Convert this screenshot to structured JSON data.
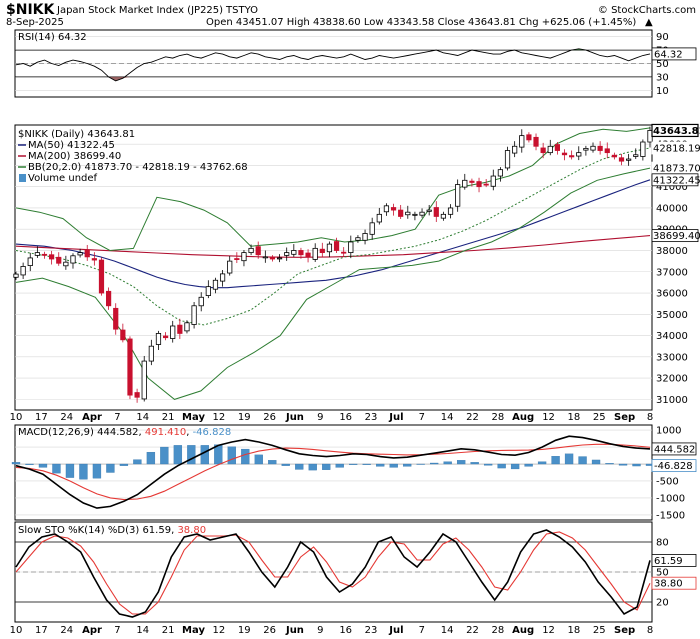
{
  "header": {
    "symbol": "$NIKK",
    "name": "Japan Stock Market Index (JP225)",
    "exchange": "TSTYO",
    "date": "8-Sep-2025",
    "quote": "Open 43451.07  High 43838.60  Low 43343.58  Close 43643.81  Chg +625.06 (+1.45%)",
    "quote_arrow": "▲",
    "watermark": "© StockCharts.com"
  },
  "legends": {
    "rsi": "RSI(14) 64.32",
    "price": "$NIKK (Daily) 43643.81",
    "ma50": "MA(50) 41322.45",
    "ma200": "MA(200) 38699.40",
    "bb": "BB(20,2.0) 41873.70 - 42818.19 - 43762.68",
    "volume": "Volume undef",
    "macd_prefix": "MACD(12,26,9)",
    "macd_v1": "444.582",
    "macd_v2": "491.410",
    "macd_v3": "-46.828",
    "sto_prefix": "Slow STO %K(14) %D(3)",
    "sto_v1": "61.59",
    "sto_v2": "38.80"
  },
  "colors": {
    "up_candle": "#000000",
    "down_candle": "#c8102e",
    "ma50": "#1a237e",
    "ma200": "#b01030",
    "bollinger": "#2e7d32",
    "macd_line": "#000000",
    "signal_line": "#e53935",
    "histogram": "#4a90c8",
    "rsi_fill_over": "#2e7d32",
    "rsi_fill_under": "#8a4a4a"
  },
  "xaxis": {
    "labels": [
      {
        "text": "10",
        "bold": false
      },
      {
        "text": "17",
        "bold": false
      },
      {
        "text": "24",
        "bold": false
      },
      {
        "text": "Apr",
        "bold": true
      },
      {
        "text": "7",
        "bold": false
      },
      {
        "text": "14",
        "bold": false
      },
      {
        "text": "21",
        "bold": false
      },
      {
        "text": "May",
        "bold": true
      },
      {
        "text": "12",
        "bold": false
      },
      {
        "text": "19",
        "bold": false
      },
      {
        "text": "26",
        "bold": false
      },
      {
        "text": "Jun",
        "bold": true
      },
      {
        "text": "9",
        "bold": false
      },
      {
        "text": "16",
        "bold": false
      },
      {
        "text": "23",
        "bold": false
      },
      {
        "text": "Jul",
        "bold": true
      },
      {
        "text": "7",
        "bold": false
      },
      {
        "text": "14",
        "bold": false
      },
      {
        "text": "22",
        "bold": false
      },
      {
        "text": "28",
        "bold": false
      },
      {
        "text": "Aug",
        "bold": true
      },
      {
        "text": "12",
        "bold": false
      },
      {
        "text": "18",
        "bold": false
      },
      {
        "text": "25",
        "bold": false
      },
      {
        "text": "Sep",
        "bold": true
      },
      {
        "text": "8",
        "bold": false
      }
    ]
  },
  "chart_data": [
    {
      "type": "line",
      "panel": "rsi",
      "title": "RSI(14) 64.32",
      "ylim": [
        0,
        100
      ],
      "y_ticks": [
        10,
        30,
        50,
        70,
        90
      ],
      "y_tick_labels": [
        "10",
        "30",
        "50",
        "70",
        "90"
      ],
      "latest_labels": [
        "64.32"
      ],
      "reference_lines": [
        30,
        70
      ],
      "series": [
        {
          "name": "RSI(14)",
          "values": [
            48,
            50,
            46,
            52,
            55,
            50,
            47,
            52,
            55,
            53,
            50,
            46,
            40,
            30,
            24,
            28,
            36,
            44,
            50,
            52,
            56,
            60,
            58,
            62,
            64,
            60,
            58,
            62,
            66,
            64,
            60,
            58,
            62,
            66,
            64,
            60,
            58,
            56,
            60,
            62,
            58,
            56,
            60,
            62,
            60,
            58,
            60,
            64,
            60,
            56,
            58,
            62,
            60,
            58,
            60,
            62,
            64,
            66,
            68,
            70,
            66,
            64,
            62,
            66,
            70,
            68,
            66,
            64,
            64,
            68,
            70,
            66,
            64,
            62,
            60,
            58,
            62,
            66,
            70,
            72,
            70,
            66,
            62,
            60,
            62,
            58,
            54,
            58,
            62,
            64.32
          ]
        }
      ]
    },
    {
      "type": "candlestick",
      "panel": "price",
      "title": "$NIKK (Daily) 43643.81",
      "ylim": [
        30500,
        43900
      ],
      "y_ticks": [
        31000,
        32000,
        33000,
        34000,
        35000,
        36000,
        37000,
        38000,
        39000,
        40000,
        41000,
        42000,
        43000
      ],
      "y_tick_labels": [
        "31000",
        "32000",
        "33000",
        "34000",
        "35000",
        "36000",
        "37000",
        "38000",
        "39000",
        "40000",
        "41000",
        "42000",
        "43000"
      ],
      "latest_labels": [
        {
          "text": "43643.81",
          "value": 43643.81,
          "style": "boxed-bold"
        },
        {
          "text": "42818.19",
          "value": 42818.19,
          "style": "plain"
        },
        {
          "text": "41873.70",
          "value": 41873.7,
          "style": "plain"
        },
        {
          "text": "41322.45",
          "value": 41322.45,
          "style": "boxed"
        },
        {
          "text": "38699.40",
          "value": 38699.4,
          "style": "boxed"
        }
      ],
      "close": [
        36890,
        37250,
        37650,
        37900,
        37800,
        37600,
        37400,
        37450,
        37750,
        37900,
        37700,
        37550,
        36000,
        35400,
        34300,
        33800,
        31200,
        31100,
        32800,
        33500,
        34100,
        33900,
        34450,
        34100,
        34600,
        35400,
        35800,
        36300,
        36600,
        36900,
        37500,
        37600,
        37900,
        38100,
        37800,
        37700,
        37600,
        37650,
        37900,
        38000,
        37800,
        37700,
        38100,
        37900,
        38300,
        38000,
        37900,
        38400,
        38600,
        38800,
        39300,
        39700,
        40100,
        39900,
        39600,
        39800,
        39700,
        39800,
        39900,
        39600,
        39700,
        40000,
        41100,
        41300,
        41200,
        41000,
        41100,
        41500,
        41800,
        42700,
        42900,
        43400,
        43200,
        42900,
        42600,
        42900,
        42700,
        42500,
        42400,
        42600,
        42800,
        42900,
        42700,
        42600,
        42400,
        42200,
        42300,
        42500,
        43100,
        43643.81
      ],
      "series": [
        {
          "name": "MA(50)",
          "values": [
            38300,
            38250,
            38200,
            38100,
            38000,
            37850,
            37700,
            37500,
            37250,
            37000,
            36750,
            36550,
            36400,
            36300,
            36250,
            36250,
            36300,
            36350,
            36400,
            36450,
            36500,
            36550,
            36600,
            36700,
            36800,
            36950,
            37100,
            37300,
            37500,
            37700,
            37900,
            38100,
            38300,
            38500,
            38700,
            38900,
            39100,
            39350,
            39600,
            39850,
            40100,
            40350,
            40600,
            40850,
            41100,
            41322.45
          ]
        },
        {
          "name": "MA(200)",
          "values": [
            38200,
            38120,
            38040,
            37960,
            37880,
            37800,
            37750,
            37700,
            37680,
            37700,
            37750,
            37800,
            37900,
            38000,
            38120,
            38260,
            38420,
            38560,
            38699.4
          ]
        },
        {
          "name": "BB upper",
          "values": [
            40000,
            39800,
            39500,
            38600,
            38000,
            38100,
            40500,
            40300,
            39900,
            39300,
            38200,
            38300,
            38400,
            38600,
            38400,
            38500,
            38700,
            39000,
            40600,
            41000,
            41200,
            41500,
            42000,
            43000,
            43500,
            43700,
            43600,
            43762.68
          ]
        },
        {
          "name": "BB middle",
          "values": [
            38000,
            37800,
            37600,
            37300,
            36900,
            36300,
            35400,
            34700,
            34500,
            34800,
            35200,
            36000,
            36900,
            37300,
            37700,
            37800,
            38000,
            38200,
            38500,
            38900,
            39400,
            40000,
            40600,
            41200,
            41800,
            42300,
            42600,
            42818.19
          ]
        },
        {
          "name": "BB lower",
          "values": [
            36500,
            36700,
            36300,
            35800,
            34200,
            32000,
            31000,
            31400,
            32500,
            33200,
            34000,
            35700,
            36400,
            37100,
            37200,
            37300,
            37500,
            38000,
            38400,
            39000,
            39800,
            40700,
            41300,
            41600,
            41873.7
          ]
        }
      ]
    },
    {
      "type": "bar+line",
      "panel": "macd",
      "title": "MACD(12,26,9) 444.582, 491.410, -46.828",
      "ylim": [
        -1650,
        1150
      ],
      "y_ticks": [
        1000,
        500,
        -500,
        -1000,
        -1500
      ],
      "y_tick_labels": [
        "1000",
        "500",
        "-500",
        "-1000",
        "-1500"
      ],
      "latest_labels": [
        "444.582",
        "-46.828"
      ],
      "series": [
        {
          "name": "MACD",
          "values": [
            -50,
            -150,
            -300,
            -600,
            -900,
            -1150,
            -1300,
            -1250,
            -1100,
            -900,
            -600,
            -300,
            -50,
            150,
            350,
            550,
            650,
            720,
            650,
            550,
            420,
            300,
            250,
            220,
            250,
            300,
            280,
            220,
            180,
            200,
            260,
            320,
            380,
            450,
            420,
            350,
            280,
            260,
            340,
            500,
            700,
            820,
            780,
            700,
            600,
            520,
            470,
            444.582
          ]
        },
        {
          "name": "Signal",
          "values": [
            -100,
            -130,
            -200,
            -330,
            -500,
            -700,
            -880,
            -1000,
            -1050,
            -1030,
            -950,
            -800,
            -600,
            -400,
            -200,
            -20,
            140,
            280,
            380,
            440,
            470,
            460,
            430,
            390,
            350,
            320,
            300,
            290,
            280,
            270,
            275,
            290,
            310,
            340,
            370,
            390,
            400,
            405,
            410,
            430,
            470,
            520,
            560,
            580,
            580,
            560,
            530,
            491.41
          ]
        },
        {
          "name": "Histogram",
          "values": [
            50,
            -20,
            -100,
            -270,
            -400,
            -450,
            -420,
            -250,
            -50,
            130,
            350,
            500,
            550,
            550,
            550,
            570,
            510,
            440,
            270,
            110,
            -50,
            -160,
            -180,
            -170,
            -100,
            -20,
            -20,
            -70,
            -100,
            -70,
            -15,
            30,
            70,
            110,
            50,
            -40,
            -120,
            -145,
            -70,
            70,
            230,
            300,
            220,
            120,
            20,
            -40,
            -60,
            -46.828
          ]
        }
      ]
    },
    {
      "type": "line",
      "panel": "stochastic",
      "title": "Slow STO %K(14) %D(3) 61.59, 38.80",
      "ylim": [
        0,
        100
      ],
      "y_ticks": [
        20,
        50,
        80
      ],
      "y_tick_labels": [
        "20",
        "50",
        "80"
      ],
      "latest_labels": [
        "61.59",
        "38.80"
      ],
      "reference_lines": [
        20,
        50,
        80
      ],
      "series": [
        {
          "name": "%K",
          "values": [
            55,
            75,
            85,
            88,
            80,
            70,
            45,
            22,
            8,
            5,
            10,
            30,
            65,
            85,
            88,
            82,
            85,
            88,
            70,
            50,
            35,
            55,
            80,
            70,
            45,
            30,
            38,
            55,
            80,
            85,
            65,
            55,
            70,
            88,
            80,
            60,
            40,
            22,
            40,
            70,
            88,
            92,
            85,
            75,
            60,
            40,
            25,
            8,
            15,
            61.59
          ]
        },
        {
          "name": "%D",
          "values": [
            50,
            65,
            80,
            86,
            84,
            76,
            60,
            38,
            18,
            8,
            8,
            20,
            45,
            72,
            86,
            86,
            86,
            87,
            80,
            62,
            45,
            45,
            65,
            75,
            60,
            40,
            35,
            45,
            65,
            80,
            78,
            62,
            62,
            78,
            84,
            72,
            55,
            35,
            32,
            50,
            72,
            88,
            90,
            84,
            72,
            55,
            38,
            20,
            12,
            38.8
          ]
        }
      ]
    }
  ]
}
